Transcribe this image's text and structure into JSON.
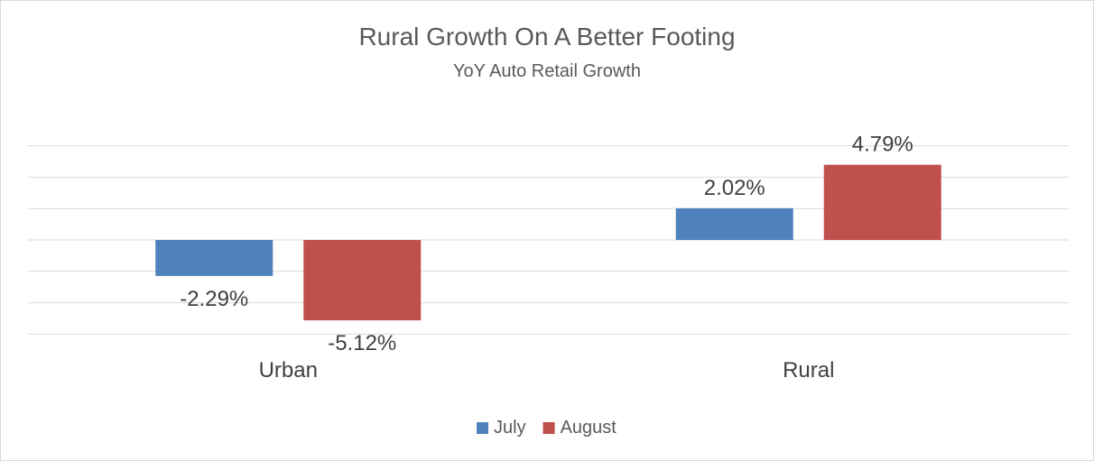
{
  "chart_data": {
    "type": "bar",
    "title": "Rural Growth On A Better Footing",
    "subtitle": "YoY Auto Retail Growth",
    "categories": [
      "Urban",
      "Rural"
    ],
    "series": [
      {
        "name": "July",
        "color": "#4f81bd",
        "values": [
          -2.29,
          2.02
        ],
        "labels": [
          "-2.29%",
          "2.02%"
        ]
      },
      {
        "name": "August",
        "color": "#c0504d",
        "values": [
          -5.12,
          4.79
        ],
        "labels": [
          "-5.12%",
          "4.79%"
        ]
      }
    ],
    "ylim": [
      -6,
      6
    ],
    "grid": true,
    "legend_position": "bottom"
  }
}
